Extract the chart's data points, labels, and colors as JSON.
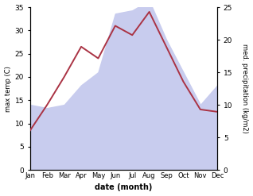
{
  "months": [
    "Jan",
    "Feb",
    "Mar",
    "Apr",
    "May",
    "Jun",
    "Jul",
    "Aug",
    "Sep",
    "Oct",
    "Nov",
    "Dec"
  ],
  "month_positions": [
    1,
    2,
    3,
    4,
    5,
    6,
    7,
    8,
    9,
    10,
    11,
    12
  ],
  "temp_max": [
    8.5,
    14.0,
    20.0,
    26.5,
    24.0,
    31.0,
    29.0,
    34.0,
    26.5,
    19.0,
    13.0,
    12.5
  ],
  "precipitation": [
    10.0,
    9.5,
    10.0,
    13.0,
    15.0,
    24.0,
    24.5,
    26.0,
    20.0,
    15.0,
    10.0,
    13.0
  ],
  "temp_color": "#aa3344",
  "precip_fill_color": "#c8ccee",
  "precip_line_color": "#c8ccee",
  "temp_ylim": [
    0,
    35
  ],
  "temp_yticks": [
    0,
    5,
    10,
    15,
    20,
    25,
    30,
    35
  ],
  "precip_ylim": [
    0,
    25
  ],
  "precip_yticks": [
    0,
    5,
    10,
    15,
    20,
    25
  ],
  "xlabel": "date (month)",
  "ylabel_left": "max temp (C)",
  "ylabel_right": "med. precipitation (kg/m2)",
  "background_color": "#ffffff"
}
